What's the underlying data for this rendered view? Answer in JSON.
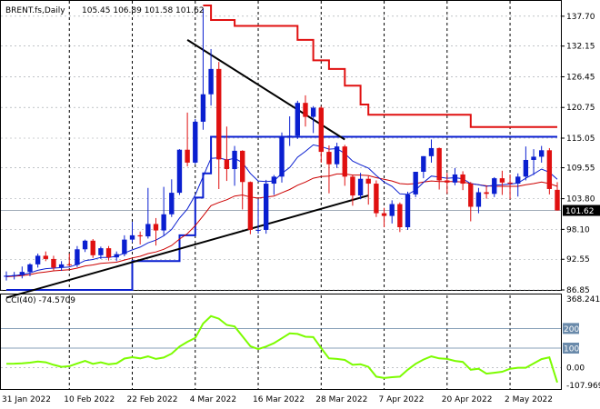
{
  "header": {
    "symbol": "BRENT.fs,Daily",
    "ohlc": "105.45 106.89 101.58 101.62"
  },
  "cci_header": {
    "label": "CCI(40) -74.5709"
  },
  "colors": {
    "bull": "#0a1fd0",
    "bear": "#e01010",
    "grid": "#9aa0a6",
    "cloud": "#e01010",
    "tenkan": "#0a1fd0",
    "kijun": "#cc0000",
    "trend": "#000000",
    "cci": "#7cfc00",
    "price_tag_bg": "#000000"
  },
  "chart_data": [
    {
      "type": "candlestick",
      "symbol": "BRENT.fs",
      "timeframe": "Daily",
      "ylim": [
        86.85,
        139.7
      ],
      "y_ticks": [
        "137.70",
        "132.15",
        "126.45",
        "120.75",
        "115.05",
        "109.55",
        "103.80",
        "98.10",
        "92.55",
        "86.85"
      ],
      "x_ticks": [
        "31 Jan 2022",
        "10 Feb 2022",
        "22 Feb 2022",
        "4 Mar 2022",
        "16 Mar 2022",
        "28 Mar 2022",
        "7 Apr 2022",
        "20 Apr 2022",
        "2 May 2022"
      ],
      "current_price": "101.62",
      "candles": [
        {
          "d": "31 Jan",
          "o": 89.3,
          "h": 90.3,
          "l": 88.6,
          "c": 89.5
        },
        {
          "d": "1 Feb",
          "o": 89.5,
          "h": 90.2,
          "l": 88.8,
          "c": 89.6
        },
        {
          "d": "2 Feb",
          "o": 89.6,
          "h": 91.2,
          "l": 89.0,
          "c": 90.2
        },
        {
          "d": "3 Feb",
          "o": 90.2,
          "h": 91.8,
          "l": 89.4,
          "c": 91.6
        },
        {
          "d": "4 Feb",
          "o": 91.6,
          "h": 93.6,
          "l": 91.0,
          "c": 93.2
        },
        {
          "d": "7 Feb",
          "o": 93.2,
          "h": 94.0,
          "l": 92.2,
          "c": 92.6
        },
        {
          "d": "8 Feb",
          "o": 92.6,
          "h": 93.2,
          "l": 90.5,
          "c": 91.0
        },
        {
          "d": "9 Feb",
          "o": 91.0,
          "h": 92.2,
          "l": 90.4,
          "c": 91.6
        },
        {
          "d": "10 Feb",
          "o": 91.6,
          "h": 93.6,
          "l": 91.2,
          "c": 91.5
        },
        {
          "d": "11 Feb",
          "o": 91.5,
          "h": 95.0,
          "l": 91.1,
          "c": 94.4
        },
        {
          "d": "14 Feb",
          "o": 94.4,
          "h": 96.2,
          "l": 93.9,
          "c": 96.0
        },
        {
          "d": "15 Feb",
          "o": 96.0,
          "h": 96.3,
          "l": 92.8,
          "c": 93.3
        },
        {
          "d": "16 Feb",
          "o": 93.3,
          "h": 94.9,
          "l": 92.6,
          "c": 94.6
        },
        {
          "d": "17 Feb",
          "o": 94.6,
          "h": 95.0,
          "l": 92.3,
          "c": 92.9
        },
        {
          "d": "18 Feb",
          "o": 92.9,
          "h": 94.0,
          "l": 92.2,
          "c": 93.5
        },
        {
          "d": "21 Feb",
          "o": 93.5,
          "h": 97.0,
          "l": 93.1,
          "c": 96.2
        },
        {
          "d": "22 Feb",
          "o": 96.2,
          "h": 99.5,
          "l": 95.7,
          "c": 97.0
        },
        {
          "d": "23 Feb",
          "o": 97.0,
          "h": 97.7,
          "l": 95.3,
          "c": 96.8
        },
        {
          "d": "24 Feb",
          "o": 96.8,
          "h": 105.8,
          "l": 96.4,
          "c": 99.1
        },
        {
          "d": "25 Feb",
          "o": 99.1,
          "h": 100.2,
          "l": 95.1,
          "c": 97.9
        },
        {
          "d": "28 Feb",
          "o": 97.9,
          "h": 106.0,
          "l": 97.0,
          "c": 100.9
        },
        {
          "d": "1 Mar",
          "o": 100.9,
          "h": 107.4,
          "l": 100.4,
          "c": 104.9
        },
        {
          "d": "2 Mar",
          "o": 104.9,
          "h": 113.0,
          "l": 104.5,
          "c": 112.9
        },
        {
          "d": "3 Mar",
          "o": 112.9,
          "h": 119.8,
          "l": 109.8,
          "c": 110.5
        },
        {
          "d": "4 Mar",
          "o": 110.5,
          "h": 118.6,
          "l": 110.2,
          "c": 118.1
        },
        {
          "d": "7 Mar",
          "o": 118.1,
          "h": 139.1,
          "l": 116.6,
          "c": 123.2
        },
        {
          "d": "8 Mar",
          "o": 123.2,
          "h": 131.6,
          "l": 121.1,
          "c": 127.9
        },
        {
          "d": "9 Mar",
          "o": 127.9,
          "h": 129.2,
          "l": 105.6,
          "c": 111.1
        },
        {
          "d": "10 Mar",
          "o": 111.1,
          "h": 117.2,
          "l": 107.1,
          "c": 109.3
        },
        {
          "d": "11 Mar",
          "o": 109.3,
          "h": 113.6,
          "l": 106.2,
          "c": 112.7
        },
        {
          "d": "14 Mar",
          "o": 112.7,
          "h": 112.8,
          "l": 101.8,
          "c": 106.9
        },
        {
          "d": "15 Mar",
          "o": 106.9,
          "h": 107.0,
          "l": 97.2,
          "c": 98.0
        },
        {
          "d": "16 Mar",
          "o": 98.0,
          "h": 103.7,
          "l": 97.3,
          "c": 98.0
        },
        {
          "d": "17 Mar",
          "o": 98.0,
          "h": 107.3,
          "l": 97.3,
          "c": 106.6
        },
        {
          "d": "18 Mar",
          "o": 106.6,
          "h": 108.2,
          "l": 104.5,
          "c": 107.9
        },
        {
          "d": "21 Mar",
          "o": 107.9,
          "h": 116.1,
          "l": 106.8,
          "c": 115.4
        },
        {
          "d": "22 Mar",
          "o": 115.4,
          "h": 119.1,
          "l": 113.6,
          "c": 115.5
        },
        {
          "d": "23 Mar",
          "o": 115.5,
          "h": 122.0,
          "l": 114.9,
          "c": 121.6
        },
        {
          "d": "24 Mar",
          "o": 121.6,
          "h": 123.0,
          "l": 117.2,
          "c": 119.0
        },
        {
          "d": "25 Mar",
          "o": 119.0,
          "h": 121.0,
          "l": 116.0,
          "c": 120.7
        },
        {
          "d": "28 Mar",
          "o": 120.7,
          "h": 121.0,
          "l": 110.5,
          "c": 112.5
        },
        {
          "d": "29 Mar",
          "o": 112.5,
          "h": 113.7,
          "l": 104.8,
          "c": 110.2
        },
        {
          "d": "30 Mar",
          "o": 110.2,
          "h": 114.2,
          "l": 109.5,
          "c": 113.5
        },
        {
          "d": "31 Mar",
          "o": 113.5,
          "h": 113.8,
          "l": 106.2,
          "c": 107.9
        },
        {
          "d": "1 Apr",
          "o": 107.9,
          "h": 108.3,
          "l": 102.5,
          "c": 104.4
        },
        {
          "d": "4 Apr",
          "o": 104.4,
          "h": 108.6,
          "l": 103.7,
          "c": 107.5
        },
        {
          "d": "5 Apr",
          "o": 107.5,
          "h": 108.0,
          "l": 102.7,
          "c": 106.6
        },
        {
          "d": "6 Apr",
          "o": 106.6,
          "h": 107.2,
          "l": 100.4,
          "c": 101.1
        },
        {
          "d": "7 Apr",
          "o": 101.1,
          "h": 102.1,
          "l": 98.5,
          "c": 100.6
        },
        {
          "d": "8 Apr",
          "o": 100.6,
          "h": 103.5,
          "l": 99.2,
          "c": 102.8
        },
        {
          "d": "11 Apr",
          "o": 102.8,
          "h": 103.1,
          "l": 97.6,
          "c": 98.5
        },
        {
          "d": "12 Apr",
          "o": 98.5,
          "h": 105.1,
          "l": 98.0,
          "c": 104.6
        },
        {
          "d": "13 Apr",
          "o": 104.6,
          "h": 108.8,
          "l": 104.1,
          "c": 108.8
        },
        {
          "d": "14 Apr",
          "o": 108.8,
          "h": 111.7,
          "l": 107.6,
          "c": 111.7
        },
        {
          "d": "18 Apr",
          "o": 111.7,
          "h": 114.8,
          "l": 110.5,
          "c": 113.2
        },
        {
          "d": "19 Apr",
          "o": 113.2,
          "h": 113.3,
          "l": 105.5,
          "c": 107.2
        },
        {
          "d": "20 Apr",
          "o": 107.2,
          "h": 108.6,
          "l": 104.7,
          "c": 106.8
        },
        {
          "d": "21 Apr",
          "o": 106.8,
          "h": 109.5,
          "l": 106.3,
          "c": 108.3
        },
        {
          "d": "22 Apr",
          "o": 108.3,
          "h": 108.9,
          "l": 105.4,
          "c": 106.6
        },
        {
          "d": "25 Apr",
          "o": 106.6,
          "h": 106.9,
          "l": 99.6,
          "c": 102.3
        },
        {
          "d": "26 Apr",
          "o": 102.3,
          "h": 105.8,
          "l": 101.1,
          "c": 105.0
        },
        {
          "d": "27 Apr",
          "o": 105.0,
          "h": 106.2,
          "l": 103.8,
          "c": 104.7
        },
        {
          "d": "28 Apr",
          "o": 104.7,
          "h": 107.8,
          "l": 104.1,
          "c": 107.6
        },
        {
          "d": "29 Apr",
          "o": 107.6,
          "h": 109.0,
          "l": 104.5,
          "c": 106.8
        },
        {
          "d": "2 May",
          "o": 106.8,
          "h": 108.3,
          "l": 103.7,
          "c": 106.6
        },
        {
          "d": "3 May",
          "o": 106.6,
          "h": 108.5,
          "l": 104.2,
          "c": 107.9
        },
        {
          "d": "4 May",
          "o": 107.9,
          "h": 113.5,
          "l": 107.2,
          "c": 111.0
        },
        {
          "d": "5 May",
          "o": 111.0,
          "h": 113.0,
          "l": 108.2,
          "c": 111.6
        },
        {
          "d": "6 May",
          "o": 111.6,
          "h": 113.6,
          "l": 110.5,
          "c": 112.8
        },
        {
          "d": "9 May",
          "o": 112.8,
          "h": 113.2,
          "l": 104.6,
          "c": 105.6
        },
        {
          "d": "10 May",
          "o": 105.45,
          "h": 106.89,
          "l": 101.58,
          "c": 101.62
        }
      ],
      "fast_ma": [
        89.4,
        89.5,
        89.7,
        90.0,
        90.5,
        90.8,
        90.9,
        91.0,
        91.1,
        91.6,
        92.3,
        92.5,
        92.9,
        92.9,
        93.1,
        93.7,
        94.3,
        94.8,
        95.6,
        96.1,
        96.9,
        98.1,
        100.2,
        101.9,
        104.5,
        107.9,
        111.3,
        111.4,
        111.0,
        111.3,
        110.5,
        108.5,
        107.1,
        107.0,
        107.1,
        108.5,
        109.6,
        111.5,
        112.6,
        113.8,
        113.5,
        113.0,
        113.1,
        112.2,
        110.8,
        110.1,
        109.5,
        108.1,
        106.9,
        106.1,
        104.7,
        104.6,
        105.4,
        106.8,
        108.0,
        107.8,
        107.6,
        107.7,
        107.5,
        106.6,
        106.4,
        106.1,
        106.3,
        106.4,
        106.5,
        106.7,
        107.6,
        108.4,
        109.3,
        108.7,
        107.4
      ],
      "slow_ma": [
        89.3,
        89.4,
        89.5,
        89.7,
        90.0,
        90.2,
        90.4,
        90.5,
        90.6,
        90.9,
        91.3,
        91.5,
        91.8,
        91.9,
        92.0,
        92.4,
        92.8,
        93.1,
        93.6,
        93.9,
        94.4,
        95.1,
        96.3,
        97.3,
        98.8,
        100.6,
        102.5,
        103.1,
        103.6,
        104.3,
        104.5,
        104.1,
        103.9,
        104.1,
        104.3,
        104.9,
        105.5,
        106.3,
        106.9,
        107.6,
        107.9,
        108.0,
        108.4,
        108.4,
        108.2,
        108.2,
        108.1,
        107.7,
        107.4,
        107.1,
        106.6,
        106.5,
        106.6,
        106.9,
        107.1,
        107.0,
        107.0,
        107.0,
        106.9,
        106.6,
        106.4,
        106.2,
        106.1,
        106.1,
        106.1,
        106.1,
        106.4,
        106.6,
        106.9,
        106.6,
        106.1
      ],
      "tenkan": [
        86.85,
        86.85,
        86.85,
        86.85,
        86.85,
        86.85,
        86.85,
        86.85,
        86.85,
        86.85,
        86.85,
        86.85,
        86.85,
        86.85,
        86.85,
        86.85,
        92.2,
        92.2,
        92.2,
        92.2,
        92.2,
        92.2,
        97.0,
        97.0,
        104.0,
        108.5,
        115.3,
        115.3,
        115.3,
        115.3,
        115.3,
        115.3,
        115.3,
        115.3,
        115.3,
        115.3,
        115.3,
        115.3,
        115.3,
        115.3,
        115.3,
        115.3,
        115.3,
        115.3,
        115.3,
        115.3,
        115.3,
        115.3,
        115.3,
        115.3,
        115.3,
        115.3,
        115.3,
        115.3,
        115.3,
        115.3,
        115.3,
        115.3,
        115.3,
        115.3,
        115.3,
        115.3,
        115.3,
        115.3,
        115.3,
        115.3,
        115.3,
        115.3,
        115.3,
        115.3,
        115.3
      ],
      "cloud_line": [
        null,
        null,
        null,
        null,
        null,
        null,
        null,
        null,
        null,
        null,
        null,
        null,
        null,
        null,
        null,
        null,
        null,
        null,
        null,
        null,
        null,
        null,
        null,
        null,
        null,
        139.7,
        137.0,
        137.0,
        137.0,
        135.9,
        135.9,
        135.9,
        135.9,
        135.9,
        135.9,
        135.9,
        135.9,
        133.3,
        133.3,
        129.5,
        129.5,
        127.9,
        127.9,
        124.8,
        124.8,
        121.3,
        119.4,
        119.4,
        119.4,
        119.4,
        119.4,
        119.4,
        119.4,
        119.4,
        119.4,
        119.4,
        119.4,
        119.4,
        119.4,
        117.1,
        117.1,
        117.1,
        117.1,
        117.1,
        117.1,
        117.1,
        117.1,
        117.1,
        117.1,
        117.1,
        117.1
      ],
      "trendlines": [
        {
          "from": {
            "d": "3 Mar",
            "y": 133.3
          },
          "to": {
            "d": "31 Mar",
            "y": 114.8
          }
        },
        {
          "from": {
            "d": "31 Jan",
            "y": 85.4
          },
          "to": {
            "d": "5 Apr",
            "y": 104.4
          }
        }
      ]
    },
    {
      "type": "line",
      "name": "CCI(40)",
      "last_value": "-74.5709",
      "ylim": [
        -107.969,
        368.2416
      ],
      "y_ticks": [
        "368.2416",
        "200",
        "100",
        "0.00",
        "-107.969"
      ],
      "levels": [
        200,
        100
      ],
      "values": [
        20,
        21,
        23,
        26,
        32,
        28,
        15,
        5,
        8,
        22,
        35,
        20,
        28,
        18,
        22,
        47,
        54,
        48,
        58,
        45,
        52,
        72,
        108,
        132,
        152,
        225,
        263,
        250,
        218,
        210,
        160,
        110,
        95,
        108,
        125,
        150,
        175,
        172,
        158,
        156,
        100,
        48,
        45,
        40,
        15,
        18,
        5,
        -45,
        -52,
        -48,
        -45,
        -10,
        20,
        42,
        58,
        48,
        45,
        35,
        30,
        -10,
        -5,
        -30,
        -25,
        -20,
        -5,
        0,
        0,
        22,
        44,
        53,
        -74.57
      ]
    }
  ]
}
